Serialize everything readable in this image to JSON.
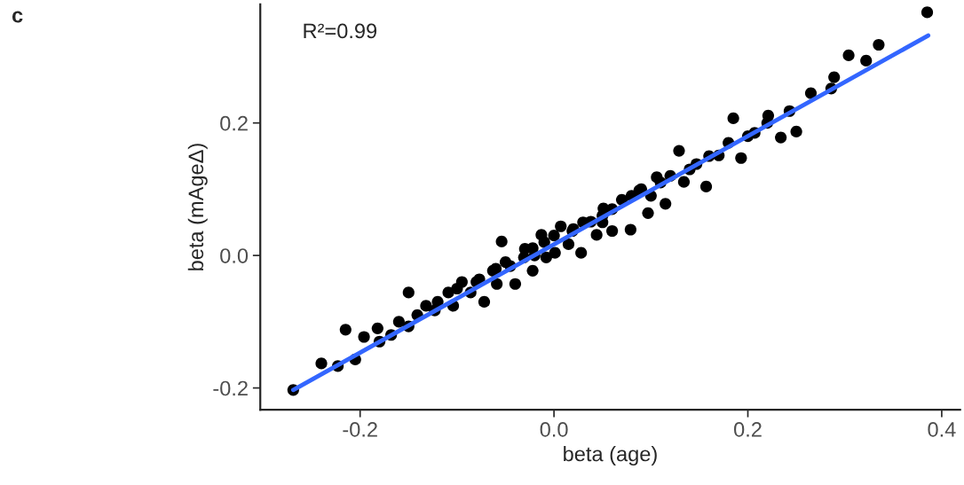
{
  "chart_data": {
    "type": "scatter",
    "xlabel": "beta (age)",
    "ylabel": "beta (mAgeΔ)",
    "annotations": [
      "c",
      "R²=0.99"
    ],
    "xlim": [
      -0.303,
      0.419
    ],
    "ylim": [
      -0.233,
      0.379
    ],
    "xticks": [
      {
        "value": -0.2,
        "label": "-0.2"
      },
      {
        "value": 0.0,
        "label": "0.0"
      },
      {
        "value": 0.2,
        "label": "0.2"
      },
      {
        "value": 0.4,
        "label": "0.4"
      }
    ],
    "yticks": [
      {
        "value": -0.2,
        "label": "-0.2"
      },
      {
        "value": 0.0,
        "label": "0.0"
      },
      {
        "value": 0.2,
        "label": "0.2"
      }
    ],
    "grid": false,
    "series": [
      {
        "marker": "circle",
        "color": "#000000",
        "x": [
          -0.269,
          -0.24,
          -0.215,
          -0.223,
          -0.205,
          -0.196,
          -0.182,
          -0.168,
          -0.15,
          -0.15,
          -0.141,
          -0.132,
          -0.123,
          -0.109,
          -0.104,
          -0.095,
          -0.086,
          -0.077,
          -0.072,
          -0.063,
          -0.054,
          -0.059,
          -0.045,
          -0.04,
          -0.031,
          -0.022,
          -0.022,
          -0.013,
          -0.008,
          0.001,
          0.007,
          0.015,
          0.019,
          0.028,
          0.038,
          0.044,
          0.051,
          0.06,
          0.07,
          0.079,
          0.088,
          0.097,
          0.106,
          0.115,
          0.129,
          0.134,
          0.147,
          0.157,
          0.17,
          0.185,
          0.193,
          0.207,
          0.221,
          0.234,
          0.243,
          0.25,
          0.265,
          0.286,
          0.289,
          0.304,
          0.322,
          0.335,
          0.385,
          -0.18,
          -0.16,
          -0.12,
          -0.1,
          -0.08,
          -0.06,
          -0.05,
          -0.03,
          -0.01,
          0.0,
          0.02,
          0.03,
          0.05,
          0.06,
          0.08,
          0.09,
          0.11,
          0.12,
          0.14,
          0.16,
          0.18,
          0.2,
          0.22,
          0.1,
          0.05,
          -0.02
        ],
        "values": [
          -0.203,
          -0.163,
          -0.112,
          -0.167,
          -0.157,
          -0.123,
          -0.11,
          -0.12,
          -0.056,
          -0.107,
          -0.09,
          -0.076,
          -0.083,
          -0.056,
          -0.076,
          -0.04,
          -0.056,
          -0.036,
          -0.07,
          -0.023,
          0.021,
          -0.043,
          -0.016,
          -0.043,
          -0.003,
          0.011,
          -0.023,
          0.031,
          -0.003,
          0.004,
          0.044,
          0.017,
          0.037,
          0.004,
          0.051,
          0.031,
          0.071,
          0.037,
          0.084,
          0.039,
          0.098,
          0.064,
          0.118,
          0.078,
          0.158,
          0.111,
          0.138,
          0.104,
          0.151,
          0.207,
          0.147,
          0.185,
          0.211,
          0.178,
          0.218,
          0.187,
          0.245,
          0.252,
          0.269,
          0.302,
          0.294,
          0.318,
          0.367,
          -0.13,
          -0.1,
          -0.07,
          -0.05,
          -0.04,
          -0.02,
          -0.01,
          0.01,
          0.02,
          0.03,
          0.04,
          0.05,
          0.06,
          0.07,
          0.09,
          0.1,
          0.11,
          0.12,
          0.13,
          0.15,
          0.17,
          0.18,
          0.2,
          0.09,
          0.05,
          0.0
        ]
      },
      {
        "type": "line",
        "marker": "none",
        "color": "#3366ff",
        "x": [
          -0.269,
          0.386
        ],
        "values": [
          -0.203,
          0.332
        ]
      }
    ]
  }
}
